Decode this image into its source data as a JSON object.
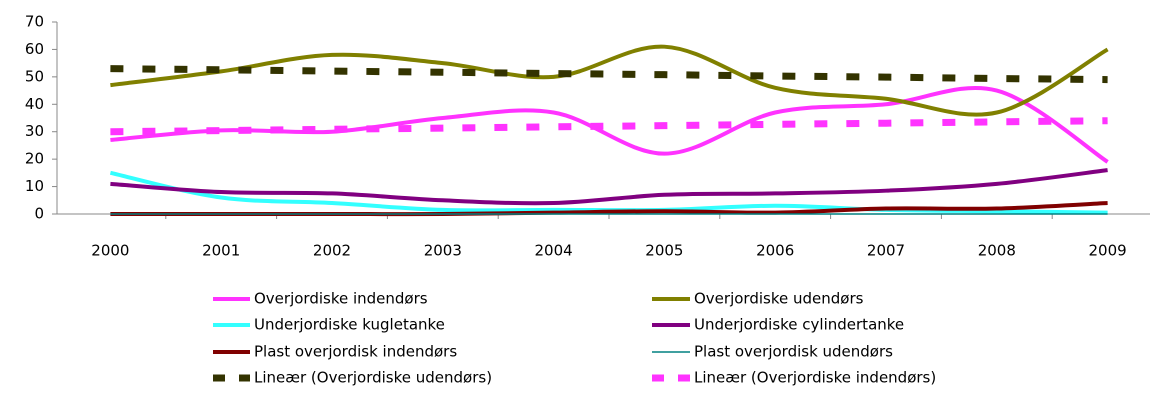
{
  "chart_data": {
    "type": "line",
    "categories": [
      "2000",
      "2001",
      "2002",
      "2003",
      "2004",
      "2005",
      "2006",
      "2007",
      "2008",
      "2009"
    ],
    "ylim": [
      0,
      70
    ],
    "yticks": [
      0,
      10,
      20,
      30,
      40,
      50,
      60,
      70
    ],
    "grid": false,
    "series": [
      {
        "name": "Overjordiske indendørs",
        "color": "#ff33ff",
        "values": [
          27,
          30.5,
          30,
          35,
          37,
          22,
          37,
          40,
          45,
          19
        ]
      },
      {
        "name": "Overjordiske udendørs",
        "color": "#808000",
        "values": [
          47,
          52,
          58,
          55,
          50,
          61,
          46,
          42,
          37,
          60
        ]
      },
      {
        "name": "Underjordiske kugletanke",
        "color": "#33ffff",
        "values": [
          15,
          6,
          4,
          1.5,
          1.5,
          1.5,
          3,
          1.5,
          1,
          0.5
        ]
      },
      {
        "name": "Underjordiske cylindertanke",
        "color": "#800080",
        "values": [
          11,
          8,
          7.5,
          5,
          4,
          7,
          7.5,
          8.5,
          11,
          16
        ]
      },
      {
        "name": "Plast overjordisk indendørs",
        "color": "#800000",
        "values": [
          0,
          0,
          0,
          0,
          0.5,
          1,
          0.5,
          2,
          2,
          4
        ]
      },
      {
        "name": "Plast overjordisk udendørs",
        "color": "#008080",
        "values": [
          0,
          0,
          0,
          0,
          0,
          0,
          0,
          0,
          0,
          0
        ]
      },
      {
        "name": "Lineær (Overjordiske udendørs)",
        "color": "#333300",
        "dashed": true,
        "values": [
          53,
          52.6,
          52.1,
          51.7,
          51.2,
          50.8,
          50.3,
          49.9,
          49.4,
          49
        ]
      },
      {
        "name": "Lineær (Overjordiske indendørs)",
        "color": "#ff33ff",
        "dashed": true,
        "values": [
          30,
          30.4,
          30.9,
          31.3,
          31.8,
          32.2,
          32.7,
          33.1,
          33.6,
          34
        ]
      }
    ]
  }
}
